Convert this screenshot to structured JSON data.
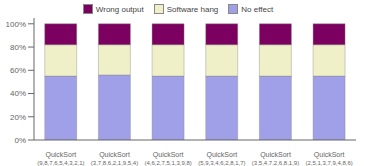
{
  "chart_data": {
    "type": "bar",
    "stacked": true,
    "categories": [
      "QuickSort\n(9,8,7,6,5,4,3,2,1)",
      "QuickSort\n(3,7,8,6,2,1,9,5,4)",
      "QuickSort\n(4,6,2,7,5,1,3,9,8)",
      "QuickSort\n(5,9,3,4,6,2,8,1,7)",
      "QuickSort\n(3,5,4,7,2,6,8,1,9)",
      "QuickSort\n(2,5,1,3,7,9,4,8,6)"
    ],
    "series": [
      {
        "name": "No effect",
        "color": "#a0a0e8",
        "values": [
          55,
          56,
          55,
          55,
          55,
          55
        ]
      },
      {
        "name": "Software hang",
        "color": "#efefc8",
        "values": [
          27,
          26,
          27,
          27,
          27,
          27
        ]
      },
      {
        "name": "Wrong output",
        "color": "#7b0060",
        "values": [
          18,
          18,
          18,
          18,
          18,
          18
        ]
      }
    ],
    "ylim": [
      0,
      105
    ],
    "yticks": [
      {
        "value": 0,
        "label": "0%"
      },
      {
        "value": 20,
        "label": "20%"
      },
      {
        "value": 40,
        "label": "40%"
      },
      {
        "value": 60,
        "label": "60%"
      },
      {
        "value": 80,
        "label": "80%"
      },
      {
        "value": 100,
        "label": "100%"
      }
    ],
    "grid": false,
    "legend": "top"
  }
}
